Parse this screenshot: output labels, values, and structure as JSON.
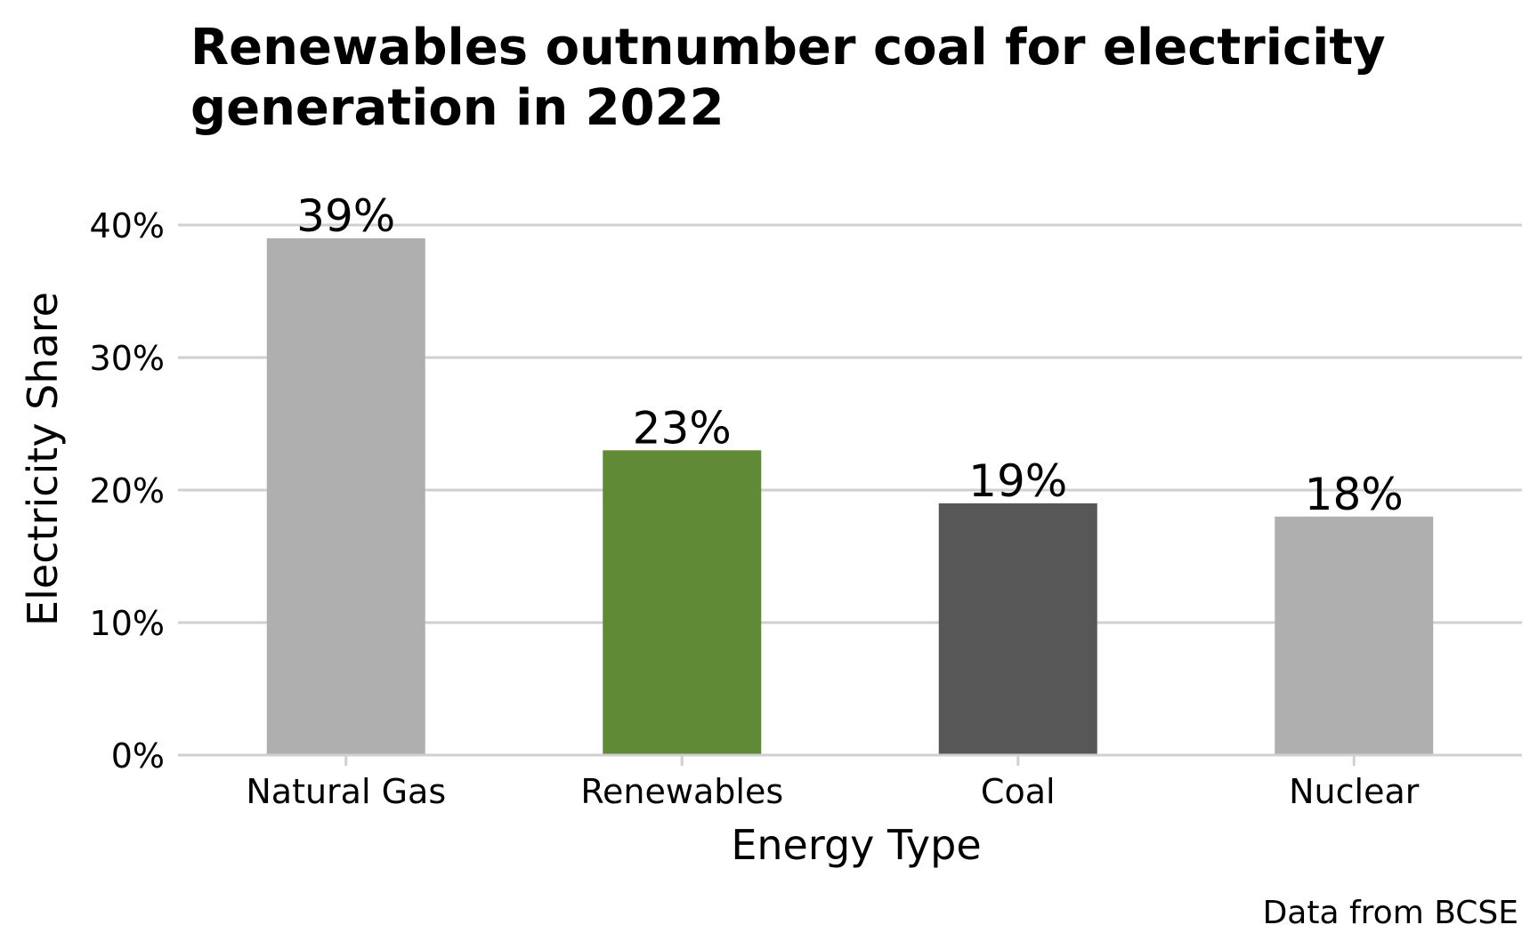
{
  "chart_data": {
    "type": "bar",
    "title_lines": [
      "Renewables outnumber coal for electricity",
      "generation in 2022"
    ],
    "xlabel": "Energy Type",
    "ylabel": "Electricity Share",
    "caption": "Data from BCSE",
    "categories": [
      "Natural Gas",
      "Renewables",
      "Coal",
      "Nuclear"
    ],
    "values": [
      39,
      23,
      19,
      18
    ],
    "value_labels": [
      "39%",
      "23%",
      "19%",
      "18%"
    ],
    "bar_colors": [
      "#afafaf",
      "#618a37",
      "#575757",
      "#afafaf"
    ],
    "ylim": [
      0,
      40
    ],
    "yticks": [
      0,
      10,
      20,
      30,
      40
    ],
    "ytick_labels": [
      "0%",
      "10%",
      "20%",
      "30%",
      "40%"
    ],
    "grid": true,
    "legend": "none"
  }
}
